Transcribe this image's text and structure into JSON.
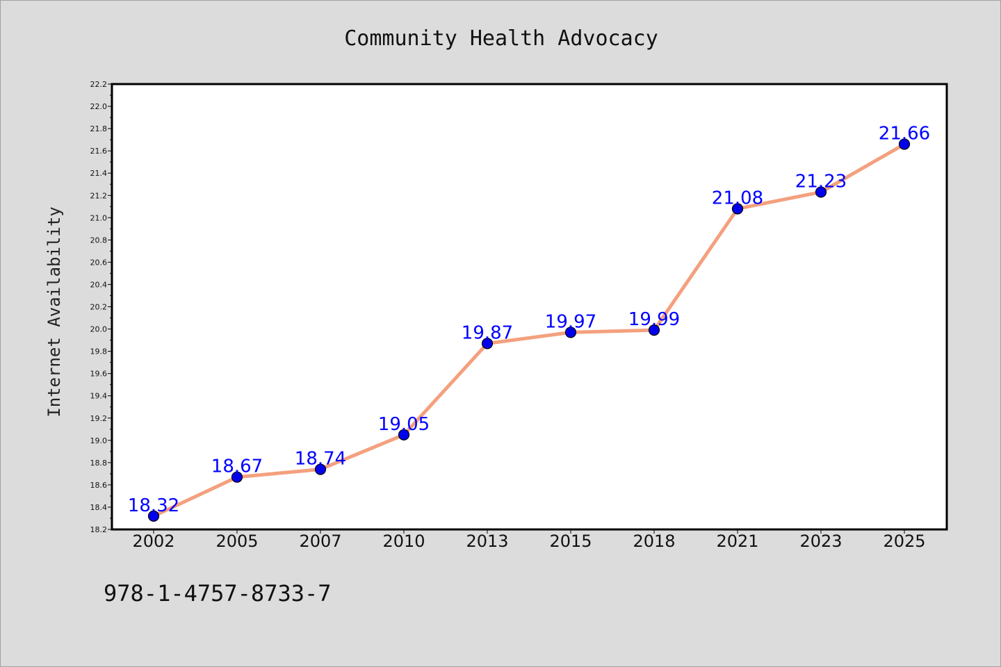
{
  "chart_data": {
    "type": "line",
    "title": "Community Health Advocacy",
    "xlabel": "",
    "ylabel": "Internet Availability",
    "categories": [
      "2002",
      "2005",
      "2007",
      "2010",
      "2013",
      "2015",
      "2018",
      "2021",
      "2023",
      "2025"
    ],
    "series": [
      {
        "values": [
          18.32,
          18.67,
          18.74,
          19.05,
          19.87,
          19.97,
          19.99,
          21.08,
          21.23,
          21.66
        ],
        "data_labels": [
          "18.32",
          "18.67",
          "18.74",
          "19.05",
          "19.87",
          "19.97",
          "19.99",
          "21.08",
          "21.23",
          "21.66"
        ],
        "line_color": "#f4a07e",
        "marker_color": "#0000ee"
      }
    ],
    "ylim": [
      18.2,
      22.2
    ],
    "y_ticks": [
      "18.2",
      "18.4",
      "18.6",
      "18.8",
      "19.0",
      "19.2",
      "19.4",
      "19.6",
      "19.8",
      "20.0",
      "20.2",
      "20.4",
      "20.6",
      "20.8",
      "21.0",
      "21.2",
      "21.4",
      "21.6",
      "21.8",
      "22.0",
      "22.2"
    ],
    "grid": false,
    "legend": "none",
    "data_label_color": "#0000ff",
    "background_color": "#dcdcdc",
    "plot_background_color": "#ffffff"
  },
  "footer": {
    "code": "978-1-4757-8733-7"
  }
}
